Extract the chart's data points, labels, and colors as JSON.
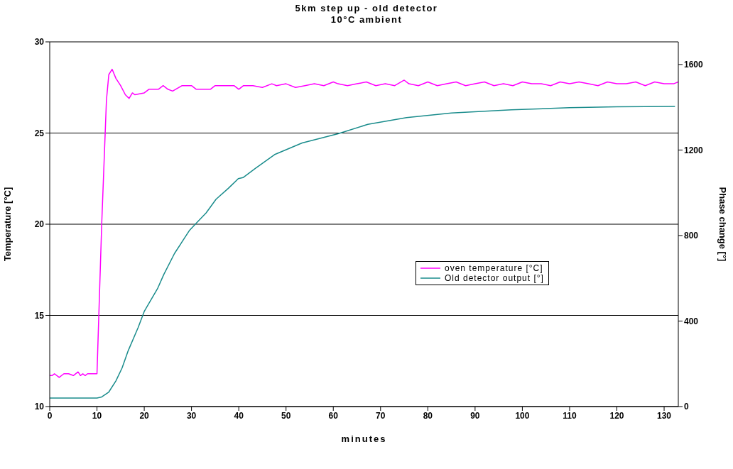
{
  "chart_data": {
    "type": "line",
    "title": "5km step up - old detector",
    "subtitle": "10°C ambient",
    "xlabel": "minutes",
    "ylabel": "Temperature [°C]",
    "y2label": "Phase change [°]",
    "xlim": [
      0,
      133
    ],
    "xticks": [
      0,
      10,
      20,
      30,
      40,
      50,
      60,
      70,
      80,
      90,
      100,
      110,
      120,
      130
    ],
    "ylim": [
      10,
      30
    ],
    "yticks": [
      10,
      15,
      20,
      25,
      30
    ],
    "y2lim": [
      0,
      1706
    ],
    "y2ticks": [
      0,
      400,
      800,
      1200,
      1600
    ],
    "grid": "y",
    "legend": "right",
    "marker": "none",
    "line_style": "solid",
    "series": [
      {
        "name": "oven temperature [°C]",
        "color": "#ff00ff",
        "x": [
          0,
          0.5,
          1,
          2,
          3,
          4,
          5,
          6,
          6.5,
          7,
          7.5,
          8,
          9,
          10,
          11,
          12,
          12.5,
          13.2,
          14,
          15,
          16,
          16.8,
          17.5,
          18,
          20,
          21,
          23,
          24,
          25,
          26,
          28,
          30,
          31,
          34,
          35,
          37,
          39,
          40,
          41,
          43,
          45,
          47,
          48,
          50,
          52,
          54,
          56,
          58,
          60,
          61,
          63,
          65,
          67,
          69,
          71,
          73,
          75,
          76,
          78,
          80,
          82,
          84,
          86,
          88,
          90,
          92,
          94,
          96,
          98,
          100,
          102,
          104,
          106,
          108,
          110,
          112,
          114,
          116,
          118,
          120,
          122,
          124,
          126,
          128,
          130,
          132,
          133
        ],
        "values": [
          11.7,
          11.7,
          11.8,
          11.6,
          11.8,
          11.8,
          11.7,
          11.9,
          11.7,
          11.8,
          11.7,
          11.8,
          11.8,
          11.8,
          20,
          26.8,
          28.2,
          28.5,
          28,
          27.6,
          27.1,
          26.9,
          27.2,
          27.1,
          27.2,
          27.4,
          27.4,
          27.6,
          27.4,
          27.3,
          27.6,
          27.6,
          27.4,
          27.4,
          27.6,
          27.6,
          27.6,
          27.4,
          27.6,
          27.6,
          27.5,
          27.7,
          27.6,
          27.7,
          27.5,
          27.6,
          27.7,
          27.6,
          27.8,
          27.7,
          27.6,
          27.7,
          27.8,
          27.6,
          27.7,
          27.6,
          27.9,
          27.7,
          27.6,
          27.8,
          27.6,
          27.7,
          27.8,
          27.6,
          27.7,
          27.8,
          27.6,
          27.7,
          27.6,
          27.8,
          27.7,
          27.7,
          27.6,
          27.8,
          27.7,
          27.8,
          27.7,
          27.6,
          27.8,
          27.7,
          27.7,
          27.8,
          27.6,
          27.8,
          27.7,
          27.7,
          27.8
        ]
      },
      {
        "name": "Old detector output [°]",
        "color": "#1a8c8c",
        "axis": "y2",
        "x": [
          0,
          5,
          10,
          11,
          12.5,
          14,
          15.3,
          16.6,
          18.7,
          20,
          22.8,
          24.1,
          26.4,
          29.6,
          30.8,
          33.1,
          35.2,
          37.8,
          39.9,
          40.9,
          43.5,
          47.7,
          53.4,
          61,
          67.3,
          75.5,
          85,
          97.7,
          110,
          120,
          132.3
        ],
        "values": [
          40,
          40,
          40,
          45,
          68,
          120,
          180,
          261,
          369,
          445,
          551,
          616,
          716,
          825,
          853,
          906,
          970,
          1021,
          1066,
          1071,
          1114,
          1180,
          1233,
          1276,
          1320,
          1352,
          1373,
          1388,
          1398,
          1402,
          1404
        ]
      }
    ]
  }
}
